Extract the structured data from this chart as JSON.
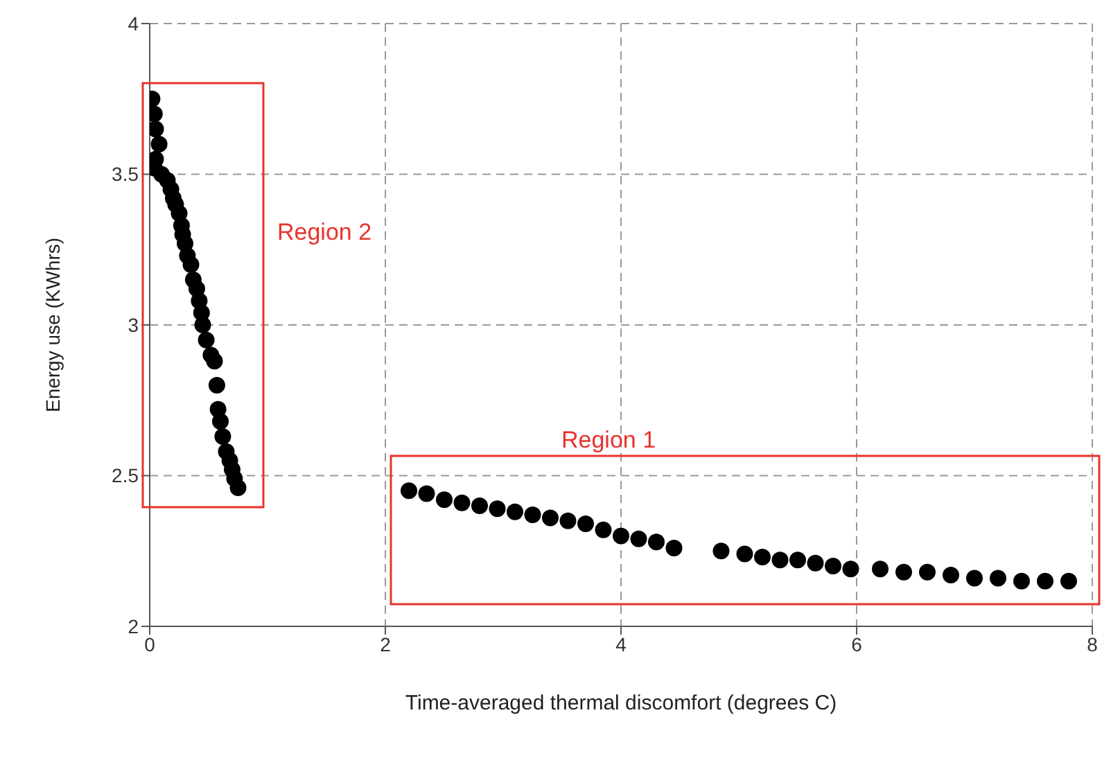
{
  "chart_data": {
    "type": "scatter",
    "xlabel": "Time-averaged thermal discomfort (degrees C)",
    "ylabel": "Energy use (KWhrs)",
    "x": [
      0.02,
      0.04,
      0.05,
      0.08,
      0.05,
      0.04,
      0.1,
      0.15,
      0.18,
      0.2,
      0.22,
      0.25,
      0.27,
      0.28,
      0.3,
      0.32,
      0.35,
      0.37,
      0.4,
      0.42,
      0.44,
      0.45,
      0.48,
      0.52,
      0.55,
      0.57,
      0.58,
      0.6,
      0.62,
      0.65,
      0.68,
      0.7,
      0.72,
      0.75,
      2.2,
      2.35,
      2.5,
      2.65,
      2.8,
      2.95,
      3.1,
      3.25,
      3.4,
      3.55,
      3.7,
      3.85,
      4.0,
      4.15,
      4.3,
      4.45,
      4.85,
      5.05,
      5.2,
      5.35,
      5.5,
      5.65,
      5.8,
      5.95,
      6.2,
      6.4,
      6.6,
      6.8,
      7.0,
      7.2,
      7.4,
      7.6,
      7.8
    ],
    "series": [
      {
        "color": "#000000",
        "values": [
          3.75,
          3.7,
          3.65,
          3.6,
          3.55,
          3.52,
          3.5,
          3.48,
          3.45,
          3.42,
          3.4,
          3.37,
          3.33,
          3.3,
          3.27,
          3.23,
          3.2,
          3.15,
          3.12,
          3.08,
          3.04,
          3.0,
          2.95,
          2.9,
          2.88,
          2.8,
          2.72,
          2.68,
          2.63,
          2.58,
          2.55,
          2.52,
          2.49,
          2.46,
          2.45,
          2.44,
          2.42,
          2.41,
          2.4,
          2.39,
          2.38,
          2.37,
          2.36,
          2.35,
          2.34,
          2.32,
          2.3,
          2.29,
          2.28,
          2.26,
          2.25,
          2.24,
          2.23,
          2.22,
          2.22,
          2.21,
          2.2,
          2.19,
          2.19,
          2.18,
          2.18,
          2.17,
          2.16,
          2.16,
          2.15,
          2.15,
          2.15
        ]
      }
    ],
    "xlim": [
      0,
      8
    ],
    "xticks": [
      0,
      2,
      4,
      6,
      8
    ],
    "ylim": [
      2,
      4
    ],
    "yticks": [
      2,
      2.5,
      3,
      3.5,
      4
    ],
    "grid": true,
    "marker": "circle",
    "annotations": [
      "Region 2",
      "Region 1"
    ]
  }
}
